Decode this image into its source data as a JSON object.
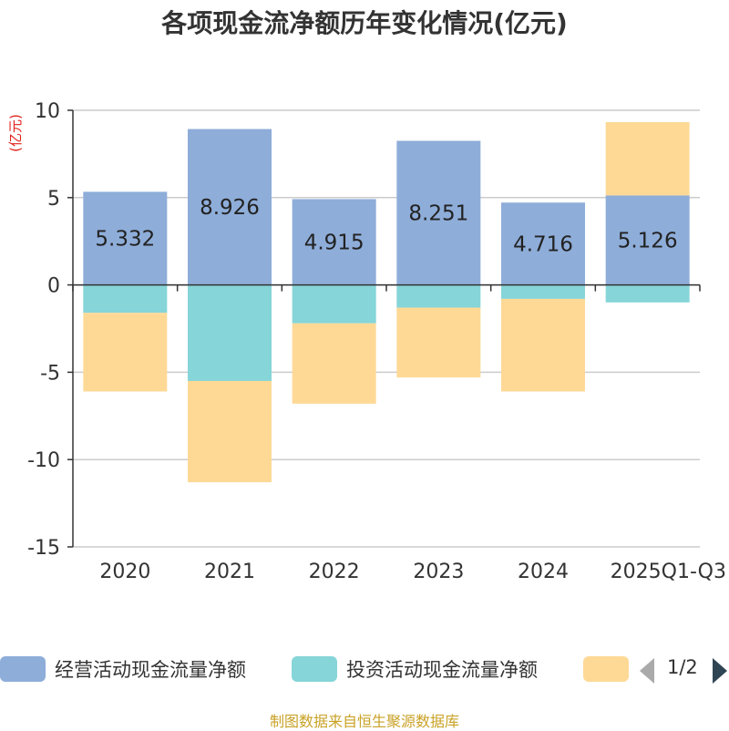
{
  "chart_data": {
    "type": "bar",
    "stacked": true,
    "title": "各项现金流净额历年变化情况(亿元)",
    "ylabel": "(亿元)",
    "ylim": [
      -15,
      10
    ],
    "yticks": [
      10,
      5,
      0,
      -5,
      -10,
      -15
    ],
    "categories": [
      "2020",
      "2021",
      "2022",
      "2023",
      "2024",
      "2025Q1-Q3"
    ],
    "series": [
      {
        "name": "经营活动现金流量净额",
        "color": "#8eadd9",
        "values": [
          5.332,
          8.926,
          4.915,
          8.251,
          4.716,
          5.126
        ],
        "labels": [
          "5.332",
          "8.926",
          "4.915",
          "8.251",
          "4.716",
          "5.126"
        ]
      },
      {
        "name": "投资活动现金流量净额",
        "color": "#86d5d8",
        "values": [
          -1.6,
          -5.5,
          -2.2,
          -1.3,
          -0.8,
          -1.0
        ]
      },
      {
        "name": "",
        "color": "#fed996",
        "values": [
          -4.5,
          -5.8,
          -4.6,
          -4.0,
          -5.3,
          4.2
        ]
      }
    ]
  },
  "legend": {
    "page": "1/2"
  },
  "source": "制图数据来自恒生聚源数据库"
}
